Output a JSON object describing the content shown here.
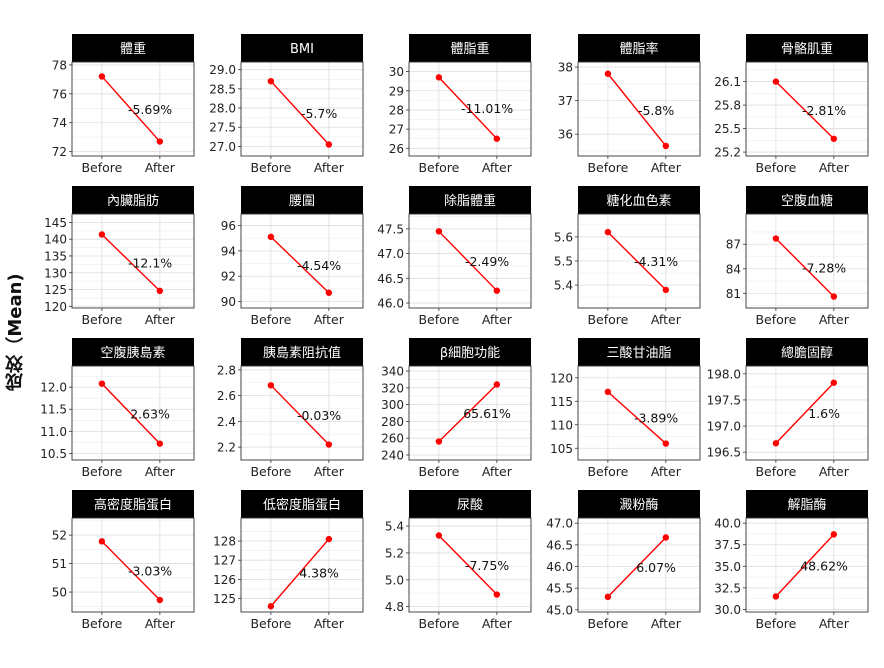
{
  "y_axis_title": "成效（Mean)",
  "chart_data": [
    {
      "type": "line",
      "title": "體重",
      "categories": [
        "Before",
        "After"
      ],
      "values": [
        77.2,
        72.7
      ],
      "annotation": "-5.69%",
      "yticks": [
        72,
        74,
        76,
        78
      ],
      "ylim": [
        71.7,
        78.2
      ],
      "colors": {
        "line": "#ff0000",
        "point": "#ff0000"
      }
    },
    {
      "type": "line",
      "title": "BMI",
      "categories": [
        "Before",
        "After"
      ],
      "values": [
        28.7,
        27.05
      ],
      "annotation": "-5.7%",
      "yticks": [
        27.0,
        27.5,
        28.0,
        28.5,
        29.0
      ],
      "ytick_labels": [
        "27.0",
        "27.5",
        "28.0",
        "28.5",
        "29.0"
      ],
      "ylim": [
        26.75,
        29.2
      ],
      "colors": {
        "line": "#ff0000",
        "point": "#ff0000"
      }
    },
    {
      "type": "line",
      "title": "體脂重",
      "categories": [
        "Before",
        "After"
      ],
      "values": [
        29.7,
        26.5
      ],
      "annotation": "-11.01%",
      "yticks": [
        26,
        27,
        28,
        29,
        30
      ],
      "ylim": [
        25.6,
        30.5
      ],
      "colors": {
        "line": "#ff0000",
        "point": "#ff0000"
      }
    },
    {
      "type": "line",
      "title": "體脂率",
      "categories": [
        "Before",
        "After"
      ],
      "values": [
        37.8,
        35.65
      ],
      "annotation": "-5.8%",
      "yticks": [
        36,
        37,
        38
      ],
      "ylim": [
        35.35,
        38.15
      ],
      "colors": {
        "line": "#ff0000",
        "point": "#ff0000"
      }
    },
    {
      "type": "line",
      "title": "骨骼肌重",
      "categories": [
        "Before",
        "After"
      ],
      "values": [
        26.1,
        25.37
      ],
      "annotation": "-2.81%",
      "yticks": [
        25.2,
        25.5,
        25.8,
        26.1
      ],
      "ytick_labels": [
        "25.2",
        "25.5",
        "25.8",
        "26.1"
      ],
      "ylim": [
        25.15,
        26.35
      ],
      "colors": {
        "line": "#ff0000",
        "point": "#ff0000"
      }
    },
    {
      "type": "line",
      "title": "內臟脂肪",
      "categories": [
        "Before",
        "After"
      ],
      "values": [
        141.4,
        124.6
      ],
      "annotation": "-12.1%",
      "yticks": [
        120,
        125,
        130,
        135,
        140,
        145
      ],
      "ylim": [
        119.5,
        147.5
      ],
      "colors": {
        "line": "#ff0000",
        "point": "#ff0000"
      }
    },
    {
      "type": "line",
      "title": "腰圍",
      "categories": [
        "Before",
        "After"
      ],
      "values": [
        95.1,
        90.7
      ],
      "annotation": "-4.54%",
      "yticks": [
        90,
        92,
        94,
        96
      ],
      "ylim": [
        89.5,
        96.9
      ],
      "colors": {
        "line": "#ff0000",
        "point": "#ff0000"
      }
    },
    {
      "type": "line",
      "title": "除脂體重",
      "categories": [
        "Before",
        "After"
      ],
      "values": [
        47.45,
        46.25
      ],
      "annotation": "-2.49%",
      "yticks": [
        46.0,
        46.5,
        47.0,
        47.5
      ],
      "ytick_labels": [
        "46.0",
        "46.5",
        "47.0",
        "47.5"
      ],
      "ylim": [
        45.9,
        47.8
      ],
      "colors": {
        "line": "#ff0000",
        "point": "#ff0000"
      }
    },
    {
      "type": "line",
      "title": "糖化血色素",
      "categories": [
        "Before",
        "After"
      ],
      "values": [
        5.62,
        5.38
      ],
      "annotation": "-4.31%",
      "yticks": [
        5.4,
        5.5,
        5.6
      ],
      "ylim": [
        5.305,
        5.695
      ],
      "colors": {
        "line": "#ff0000",
        "point": "#ff0000"
      }
    },
    {
      "type": "line",
      "title": "空腹血糖",
      "categories": [
        "Before",
        "After"
      ],
      "values": [
        87.7,
        80.6
      ],
      "annotation": "-7.28%",
      "yticks": [
        81,
        84,
        87
      ],
      "ylim": [
        79.2,
        90.7
      ],
      "colors": {
        "line": "#ff0000",
        "point": "#ff0000"
      }
    },
    {
      "type": "line",
      "title": "空腹胰島素",
      "categories": [
        "Before",
        "After"
      ],
      "values": [
        12.08,
        10.72
      ],
      "annotation": "2.63%",
      "yticks": [
        10.5,
        11.0,
        11.5,
        12.0
      ],
      "ytick_labels": [
        "10.5",
        "11.0",
        "11.5",
        "12.0"
      ],
      "ylim": [
        10.35,
        12.48
      ],
      "colors": {
        "line": "#ff0000",
        "point": "#ff0000"
      }
    },
    {
      "type": "line",
      "title": "胰島素阻抗值",
      "categories": [
        "Before",
        "After"
      ],
      "values": [
        2.68,
        2.22
      ],
      "annotation": "-0.03%",
      "yticks": [
        2.2,
        2.4,
        2.6,
        2.8
      ],
      "ytick_labels": [
        "2.2",
        "2.4",
        "2.6",
        "2.8"
      ],
      "ylim": [
        2.1,
        2.83
      ],
      "colors": {
        "line": "#ff0000",
        "point": "#ff0000"
      }
    },
    {
      "type": "line",
      "title": "β細胞功能",
      "categories": [
        "Before",
        "After"
      ],
      "values": [
        256,
        324
      ],
      "annotation": "65.61%",
      "yticks": [
        240,
        260,
        280,
        300,
        320,
        340
      ],
      "ylim": [
        234,
        346
      ],
      "colors": {
        "line": "#ff0000",
        "point": "#ff0000"
      }
    },
    {
      "type": "line",
      "title": "三酸甘油脂",
      "categories": [
        "Before",
        "After"
      ],
      "values": [
        117,
        106
      ],
      "annotation": "-3.89%",
      "yticks": [
        105,
        110,
        115,
        120
      ],
      "ylim": [
        102.5,
        122.5
      ],
      "colors": {
        "line": "#ff0000",
        "point": "#ff0000"
      }
    },
    {
      "type": "line",
      "title": "總膽固醇",
      "categories": [
        "Before",
        "After"
      ],
      "values": [
        196.67,
        197.83
      ],
      "annotation": "1.6%",
      "yticks": [
        196.5,
        197.0,
        197.5,
        198.0
      ],
      "ytick_labels": [
        "196.5",
        "197.0",
        "197.5",
        "198.0"
      ],
      "ylim": [
        196.35,
        198.15
      ],
      "colors": {
        "line": "#ff0000",
        "point": "#ff0000"
      }
    },
    {
      "type": "line",
      "title": "高密度脂蛋白",
      "categories": [
        "Before",
        "After"
      ],
      "values": [
        51.78,
        49.72
      ],
      "annotation": "-3.03%",
      "yticks": [
        50,
        51,
        52
      ],
      "ylim": [
        49.3,
        52.6
      ],
      "colors": {
        "line": "#ff0000",
        "point": "#ff0000"
      }
    },
    {
      "type": "line",
      "title": "低密度脂蛋白",
      "categories": [
        "Before",
        "After"
      ],
      "values": [
        124.6,
        128.1
      ],
      "annotation": "4.38%",
      "yticks": [
        125,
        126,
        127,
        128
      ],
      "ylim": [
        124.3,
        129.2
      ],
      "colors": {
        "line": "#ff0000",
        "point": "#ff0000"
      }
    },
    {
      "type": "line",
      "title": "尿酸",
      "categories": [
        "Before",
        "After"
      ],
      "values": [
        5.33,
        4.89
      ],
      "annotation": "-7.75%",
      "yticks": [
        4.8,
        5.0,
        5.2,
        5.4
      ],
      "ytick_labels": [
        "4.8",
        "5.0",
        "5.2",
        "5.4"
      ],
      "ylim": [
        4.76,
        5.46
      ],
      "colors": {
        "line": "#ff0000",
        "point": "#ff0000"
      }
    },
    {
      "type": "line",
      "title": "澱粉酶",
      "categories": [
        "Before",
        "After"
      ],
      "values": [
        45.3,
        46.67
      ],
      "annotation": "6.07%",
      "yticks": [
        45.0,
        45.5,
        46.0,
        46.5,
        47.0
      ],
      "ytick_labels": [
        "45.0",
        "45.5",
        "46.0",
        "46.5",
        "47.0"
      ],
      "ylim": [
        44.95,
        47.12
      ],
      "colors": {
        "line": "#ff0000",
        "point": "#ff0000"
      }
    },
    {
      "type": "line",
      "title": "解脂酶",
      "categories": [
        "Before",
        "After"
      ],
      "values": [
        31.5,
        38.7
      ],
      "annotation": "48.62%",
      "yticks": [
        30.0,
        32.5,
        35.0,
        37.5,
        40.0
      ],
      "ytick_labels": [
        "30.0",
        "32.5",
        "35.0",
        "37.5",
        "40.0"
      ],
      "ylim": [
        29.7,
        40.6
      ],
      "colors": {
        "line": "#ff0000",
        "point": "#ff0000"
      }
    }
  ]
}
